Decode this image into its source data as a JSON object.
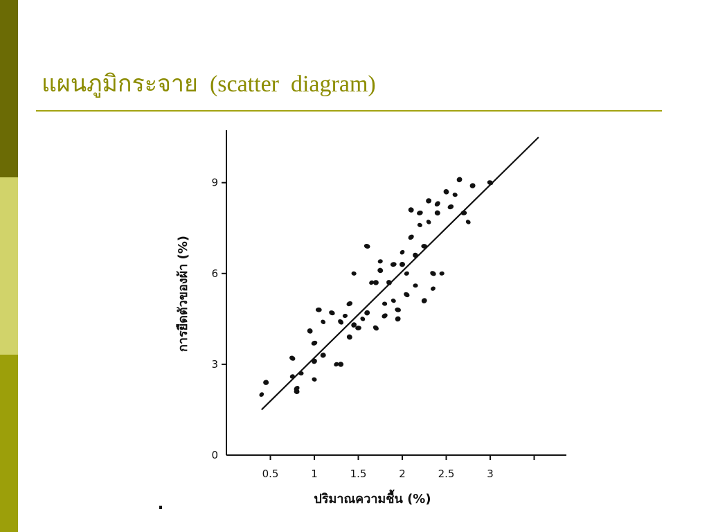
{
  "slide": {
    "title": "แผนภูมิกระจาย  (scatter  diagram)"
  },
  "colors": {
    "sidebar_top": "#6b6b05",
    "sidebar_mid": "#d1d36a",
    "sidebar_bottom": "#9c9f0a",
    "title_text": "#8c8c00",
    "title_rule": "#a3a310",
    "ink": "#111111"
  },
  "chart_data": {
    "type": "scatter",
    "title": "",
    "xlabel": "ปริมาณความชื้น (%)",
    "ylabel": "การยืดตัวของผ้า (%)",
    "xlim": [
      0,
      3.5
    ],
    "ylim": [
      0,
      10.6
    ],
    "x_ticks": [
      {
        "value": 0.5,
        "label": "0.5"
      },
      {
        "value": 1,
        "label": "1"
      },
      {
        "value": 1.5,
        "label": "1.5"
      },
      {
        "value": 2,
        "label": "2"
      },
      {
        "value": 2.5,
        "label": "2.5"
      },
      {
        "value": 3,
        "label": "3"
      },
      {
        "value": 3.5,
        "label": ""
      }
    ],
    "y_ticks": [
      {
        "value": 0,
        "label": "0"
      },
      {
        "value": 3,
        "label": "3"
      },
      {
        "value": 6,
        "label": "6"
      },
      {
        "value": 9,
        "label": "9"
      }
    ],
    "points": [
      [
        0.4,
        2.0
      ],
      [
        0.45,
        2.4
      ],
      [
        0.75,
        3.2
      ],
      [
        0.75,
        2.6
      ],
      [
        0.8,
        2.1
      ],
      [
        0.8,
        2.2
      ],
      [
        0.85,
        2.7
      ],
      [
        0.95,
        4.1
      ],
      [
        1.0,
        3.7
      ],
      [
        1.0,
        2.5
      ],
      [
        1.0,
        3.1
      ],
      [
        1.05,
        4.8
      ],
      [
        1.1,
        4.4
      ],
      [
        1.1,
        3.3
      ],
      [
        1.2,
        4.7
      ],
      [
        1.25,
        3.0
      ],
      [
        1.3,
        3.0
      ],
      [
        1.3,
        4.4
      ],
      [
        1.35,
        4.6
      ],
      [
        1.4,
        3.9
      ],
      [
        1.4,
        5.0
      ],
      [
        1.45,
        6.0
      ],
      [
        1.45,
        4.3
      ],
      [
        1.5,
        4.2
      ],
      [
        1.55,
        4.5
      ],
      [
        1.6,
        4.7
      ],
      [
        1.6,
        6.9
      ],
      [
        1.65,
        5.7
      ],
      [
        1.7,
        5.7
      ],
      [
        1.7,
        4.2
      ],
      [
        1.75,
        6.4
      ],
      [
        1.75,
        6.1
      ],
      [
        1.8,
        4.6
      ],
      [
        1.8,
        5.0
      ],
      [
        1.85,
        5.7
      ],
      [
        1.9,
        6.3
      ],
      [
        1.9,
        5.1
      ],
      [
        1.95,
        4.5
      ],
      [
        1.95,
        4.8
      ],
      [
        2.0,
        6.7
      ],
      [
        2.0,
        6.3
      ],
      [
        2.05,
        5.3
      ],
      [
        2.05,
        6.0
      ],
      [
        2.1,
        8.1
      ],
      [
        2.1,
        7.2
      ],
      [
        2.15,
        5.6
      ],
      [
        2.15,
        6.6
      ],
      [
        2.2,
        8.0
      ],
      [
        2.2,
        7.6
      ],
      [
        2.25,
        5.1
      ],
      [
        2.25,
        6.9
      ],
      [
        2.3,
        7.7
      ],
      [
        2.3,
        8.4
      ],
      [
        2.35,
        6.0
      ],
      [
        2.35,
        5.5
      ],
      [
        2.4,
        8.0
      ],
      [
        2.4,
        8.3
      ],
      [
        2.45,
        6.0
      ],
      [
        2.5,
        8.7
      ],
      [
        2.55,
        8.2
      ],
      [
        2.6,
        8.6
      ],
      [
        2.65,
        9.1
      ],
      [
        2.7,
        8.0
      ],
      [
        2.75,
        7.7
      ],
      [
        2.8,
        8.9
      ],
      [
        3.0,
        9.0
      ]
    ],
    "trend_line": {
      "from": [
        0.4,
        1.5
      ],
      "to": [
        3.55,
        10.5
      ]
    },
    "grid": false,
    "legend": "none"
  }
}
